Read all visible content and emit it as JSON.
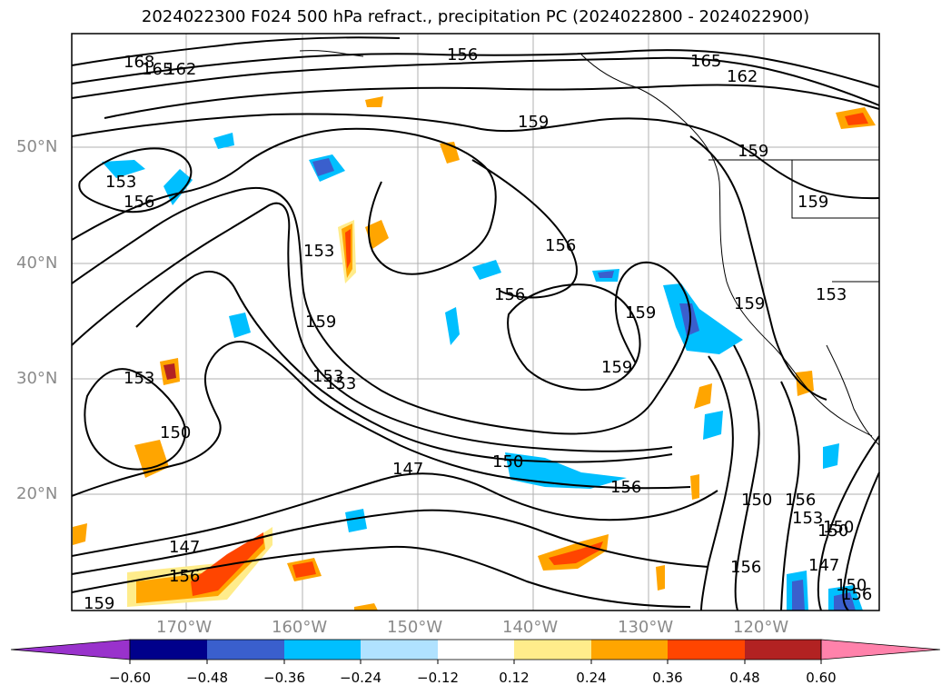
{
  "title": "2024022300 F024 500 hPa refract., precipitation PC (2024022800 - 2024022900)",
  "lat_labels": [
    "50°N",
    "40°N",
    "30°N",
    "20°N"
  ],
  "lon_labels": [
    "170°W",
    "160°W",
    "150°W",
    "140°W",
    "130°W",
    "120°W"
  ],
  "contour_labels": [
    "168",
    "165",
    "162",
    "156",
    "165",
    "162",
    "159",
    "159",
    "159",
    "153",
    "156",
    "153",
    "156",
    "156",
    "159",
    "159",
    "159",
    "159",
    "153",
    "153",
    "153",
    "153",
    "150",
    "150",
    "147",
    "150",
    "156",
    "150",
    "156",
    "153",
    "150",
    "147",
    "147",
    "156",
    "156",
    "159",
    "156",
    "150"
  ],
  "colorbar": {
    "ticks": [
      "−0.60",
      "−0.48",
      "−0.36",
      "−0.24",
      "−0.12",
      "0.12",
      "0.24",
      "0.36",
      "0.48",
      "0.60"
    ],
    "colors": [
      "#9932cc",
      "#00008b",
      "#3a5fcd",
      "#00bfff",
      "#b0e2ff",
      "#ffffff",
      "#ffec8b",
      "#ffa500",
      "#ff4500",
      "#b22222",
      "#ff82ab"
    ]
  }
}
